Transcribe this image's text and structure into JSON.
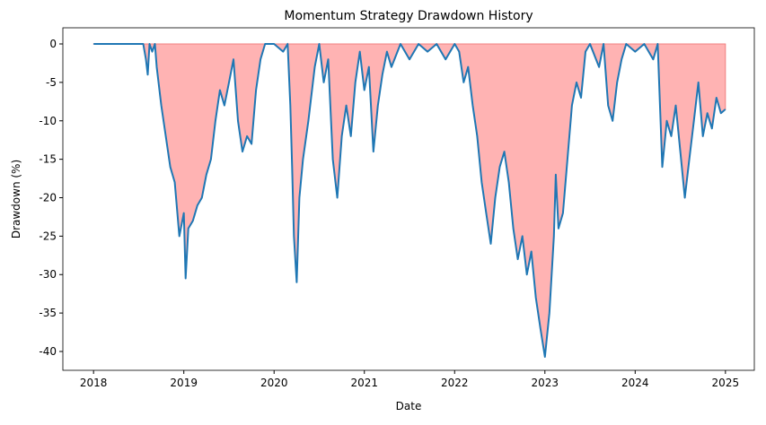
{
  "chart_data": {
    "type": "area",
    "title": "Momentum Strategy Drawdown History",
    "xlabel": "Date",
    "ylabel": "Drawdown (%)",
    "x": [
      2018.0,
      2018.55,
      2018.58,
      2018.6,
      2018.62,
      2018.65,
      2018.68,
      2018.7,
      2018.75,
      2018.8,
      2018.85,
      2018.9,
      2018.95,
      2019.0,
      2019.02,
      2019.05,
      2019.1,
      2019.15,
      2019.2,
      2019.25,
      2019.3,
      2019.35,
      2019.4,
      2019.45,
      2019.5,
      2019.55,
      2019.6,
      2019.65,
      2019.7,
      2019.75,
      2019.8,
      2019.85,
      2019.9,
      2020.0,
      2020.1,
      2020.15,
      2020.18,
      2020.2,
      2020.22,
      2020.25,
      2020.28,
      2020.32,
      2020.38,
      2020.45,
      2020.5,
      2020.55,
      2020.6,
      2020.65,
      2020.7,
      2020.75,
      2020.8,
      2020.85,
      2020.9,
      2020.95,
      2021.0,
      2021.05,
      2021.1,
      2021.15,
      2021.2,
      2021.25,
      2021.3,
      2021.4,
      2021.5,
      2021.6,
      2021.7,
      2021.8,
      2021.9,
      2022.0,
      2022.05,
      2022.1,
      2022.15,
      2022.2,
      2022.25,
      2022.3,
      2022.35,
      2022.4,
      2022.45,
      2022.5,
      2022.55,
      2022.6,
      2022.65,
      2022.7,
      2022.75,
      2022.8,
      2022.85,
      2022.9,
      2022.95,
      2023.0,
      2023.05,
      2023.1,
      2023.12,
      2023.15,
      2023.2,
      2023.25,
      2023.3,
      2023.35,
      2023.4,
      2023.45,
      2023.5,
      2023.6,
      2023.65,
      2023.7,
      2023.75,
      2023.8,
      2023.85,
      2023.9,
      2024.0,
      2024.1,
      2024.2,
      2024.25,
      2024.3,
      2024.35,
      2024.4,
      2024.45,
      2024.5,
      2024.55,
      2024.6,
      2024.65,
      2024.7,
      2024.75,
      2024.8,
      2024.85,
      2024.9,
      2024.95,
      2025.0
    ],
    "values": [
      0,
      0,
      -2,
      -4,
      0,
      -1,
      0,
      -3,
      -8,
      -12,
      -16,
      -18,
      -25,
      -22,
      -30.5,
      -24,
      -23,
      -21,
      -20,
      -17,
      -15,
      -10,
      -6,
      -8,
      -5,
      -2,
      -10,
      -14,
      -12,
      -13,
      -6,
      -2,
      0,
      0,
      -1,
      0,
      -8,
      -16,
      -25,
      -31,
      -20,
      -15,
      -10,
      -3,
      0,
      -5,
      -2,
      -15,
      -20,
      -12,
      -8,
      -12,
      -5,
      -1,
      -6,
      -3,
      -14,
      -8,
      -4,
      -1,
      -3,
      0,
      -2,
      0,
      -1,
      0,
      -2,
      0,
      -1,
      -5,
      -3,
      -8,
      -12,
      -18,
      -22,
      -26,
      -20,
      -16,
      -14,
      -18,
      -24,
      -28,
      -25,
      -30,
      -27,
      -33,
      -37,
      -40.7,
      -35,
      -25,
      -17,
      -24,
      -22,
      -15,
      -8,
      -5,
      -7,
      -1,
      0,
      -3,
      0,
      -8,
      -10,
      -5,
      -2,
      0,
      -1,
      0,
      -2,
      0,
      -16,
      -10,
      -12,
      -8,
      -14,
      -20,
      -15,
      -10,
      -5,
      -12,
      -9,
      -11,
      -7,
      -9,
      -8.5
    ],
    "color": "#1f77b4",
    "fill_color": "#ffb3b3",
    "xlim": [
      2017.66,
      2025.32
    ],
    "xticks": [
      2018,
      2019,
      2020,
      2021,
      2022,
      2023,
      2024,
      2025
    ],
    "ylim": [
      -42.45,
      2.1
    ],
    "yticks": [
      0,
      -5,
      -10,
      -15,
      -20,
      -25,
      -30,
      -35,
      -40
    ]
  }
}
